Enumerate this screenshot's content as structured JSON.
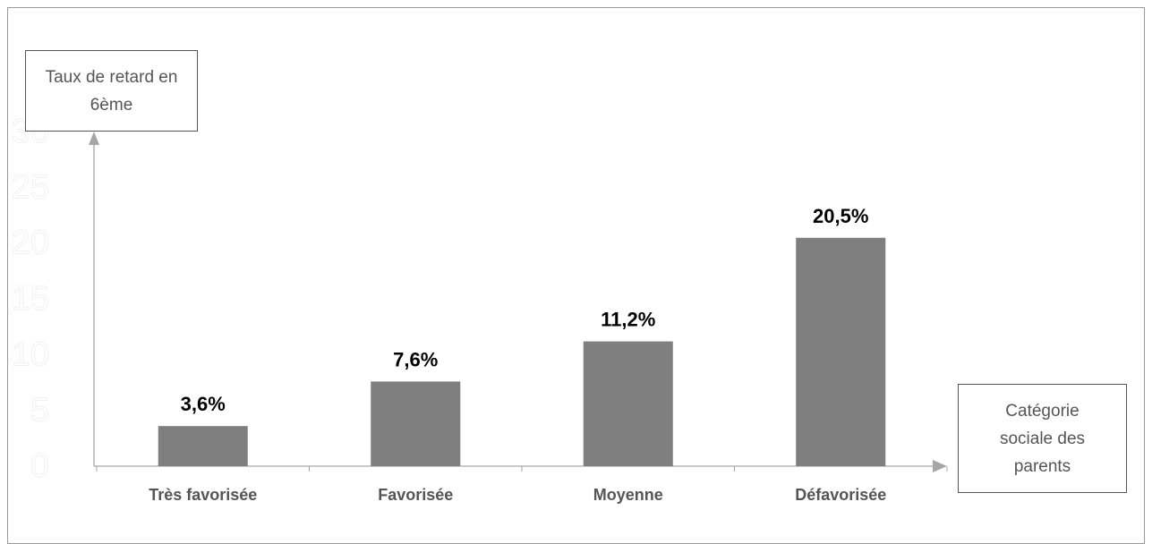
{
  "chart_data": {
    "type": "bar",
    "categories": [
      "Très favorisée",
      "Favorisée",
      "Moyenne",
      "Défavorisée"
    ],
    "values": [
      3.6,
      7.6,
      11.2,
      20.5
    ],
    "value_labels": [
      "3,6%",
      "7,6%",
      "11,2%",
      "20,5%"
    ],
    "title": "",
    "ylabel": "Taux de retard en 6ème",
    "xlabel": "Catégorie sociale des parents",
    "y_ticks": [
      "0",
      "5",
      "10",
      "15",
      "20",
      "25",
      "30"
    ],
    "ylim": [
      0,
      30
    ],
    "grid": false,
    "colors": {
      "bar": "#7f7f7f",
      "axis": "#a6a6a6",
      "text": "#555555",
      "value_text": "#000000",
      "tick_text": "#ffffff"
    }
  }
}
